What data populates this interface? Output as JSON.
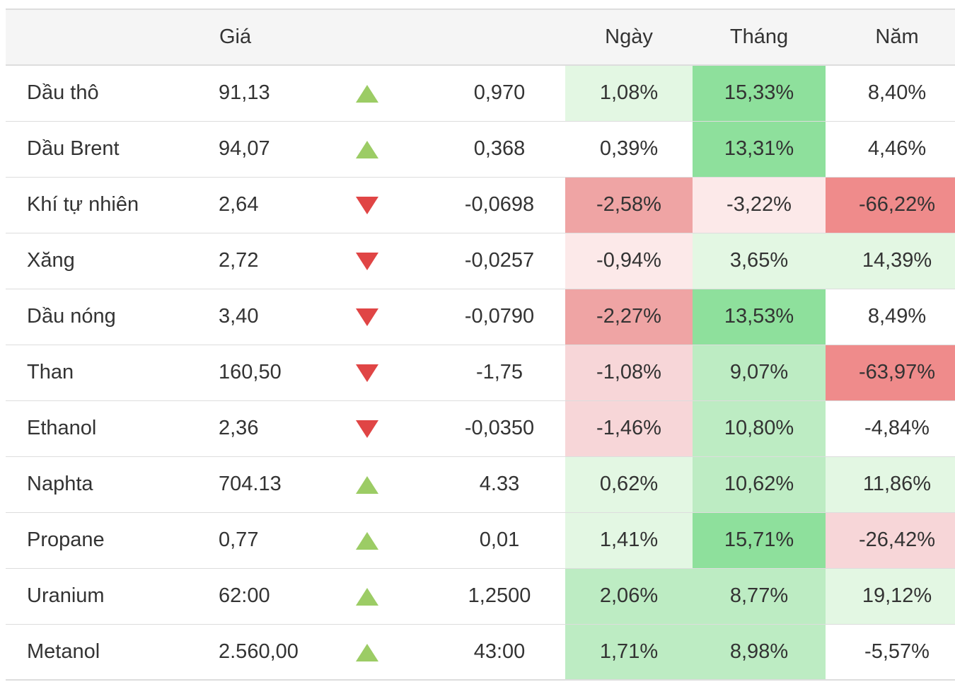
{
  "header": {
    "name": "",
    "price": "Giá",
    "arrow": "",
    "change": "",
    "day": "Ngày",
    "month": "Tháng",
    "year": "Năm"
  },
  "colors": {
    "g1": "#e3f7e3",
    "g2": "#bdecc3",
    "g3": "#8ee09c",
    "r1": "#fce9e9",
    "r2": "#f7d6d8",
    "r3": "#efa4a4",
    "r4": "#ef8b8b",
    "up": "#9ccc65",
    "down": "#e04545"
  },
  "rows": [
    {
      "name": "Dầu thô",
      "price": "91,13",
      "dir": "up",
      "change": "0,970",
      "day": "1,08%",
      "month": "15,33%",
      "year": "8,40%",
      "day_bg": "g1",
      "month_bg": "g3",
      "year_bg": ""
    },
    {
      "name": "Dầu Brent",
      "price": "94,07",
      "dir": "up",
      "change": "0,368",
      "day": "0,39%",
      "month": "13,31%",
      "year": "4,46%",
      "day_bg": "",
      "month_bg": "g3",
      "year_bg": ""
    },
    {
      "name": "Khí tự nhiên",
      "price": "2,64",
      "dir": "down",
      "change": "-0,0698",
      "day": "-2,58%",
      "month": "-3,22%",
      "year": "-66,22%",
      "day_bg": "r3",
      "month_bg": "r1",
      "year_bg": "r4"
    },
    {
      "name": "Xăng",
      "price": "2,72",
      "dir": "down",
      "change": "-0,0257",
      "day": "-0,94%",
      "month": "3,65%",
      "year": "14,39%",
      "day_bg": "r1",
      "month_bg": "g1",
      "year_bg": "g1"
    },
    {
      "name": "Dầu nóng",
      "price": "3,40",
      "dir": "down",
      "change": "-0,0790",
      "day": "-2,27%",
      "month": "13,53%",
      "year": "8,49%",
      "day_bg": "r3",
      "month_bg": "g3",
      "year_bg": ""
    },
    {
      "name": "Than",
      "price": "160,50",
      "dir": "down",
      "change": "-1,75",
      "day": "-1,08%",
      "month": "9,07%",
      "year": "-63,97%",
      "day_bg": "r2",
      "month_bg": "g2",
      "year_bg": "r4"
    },
    {
      "name": "Ethanol",
      "price": "2,36",
      "dir": "down",
      "change": "-0,0350",
      "day": "-1,46%",
      "month": "10,80%",
      "year": "-4,84%",
      "day_bg": "r2",
      "month_bg": "g2",
      "year_bg": ""
    },
    {
      "name": "Naphta",
      "price": "704.13",
      "dir": "up",
      "change": "4.33",
      "day": "0,62%",
      "month": "10,62%",
      "year": "11,86%",
      "day_bg": "g1",
      "month_bg": "g2",
      "year_bg": "g1"
    },
    {
      "name": "Propane",
      "price": "0,77",
      "dir": "up",
      "change": "0,01",
      "day": "1,41%",
      "month": "15,71%",
      "year": "-26,42%",
      "day_bg": "g1",
      "month_bg": "g3",
      "year_bg": "r2"
    },
    {
      "name": "Uranium",
      "price": "62:00",
      "dir": "up",
      "change": "1,2500",
      "day": "2,06%",
      "month": "8,77%",
      "year": "19,12%",
      "day_bg": "g2",
      "month_bg": "g2",
      "year_bg": "g1"
    },
    {
      "name": "Metanol",
      "price": "2.560,00",
      "dir": "up",
      "change": "43:00",
      "day": "1,71%",
      "month": "8,98%",
      "year": "-5,57%",
      "day_bg": "g2",
      "month_bg": "g2",
      "year_bg": ""
    }
  ]
}
